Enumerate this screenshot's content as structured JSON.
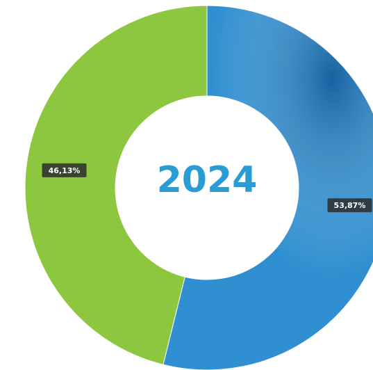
{
  "chart_data": {
    "type": "donut",
    "center_text": "2024",
    "values": [
      53.87,
      46.13
    ],
    "value_labels": [
      "53,87%",
      "46,13%"
    ],
    "colors": [
      "#2f8fd0",
      "#8dc63f"
    ],
    "center_text_color": "#2a9bd3"
  }
}
